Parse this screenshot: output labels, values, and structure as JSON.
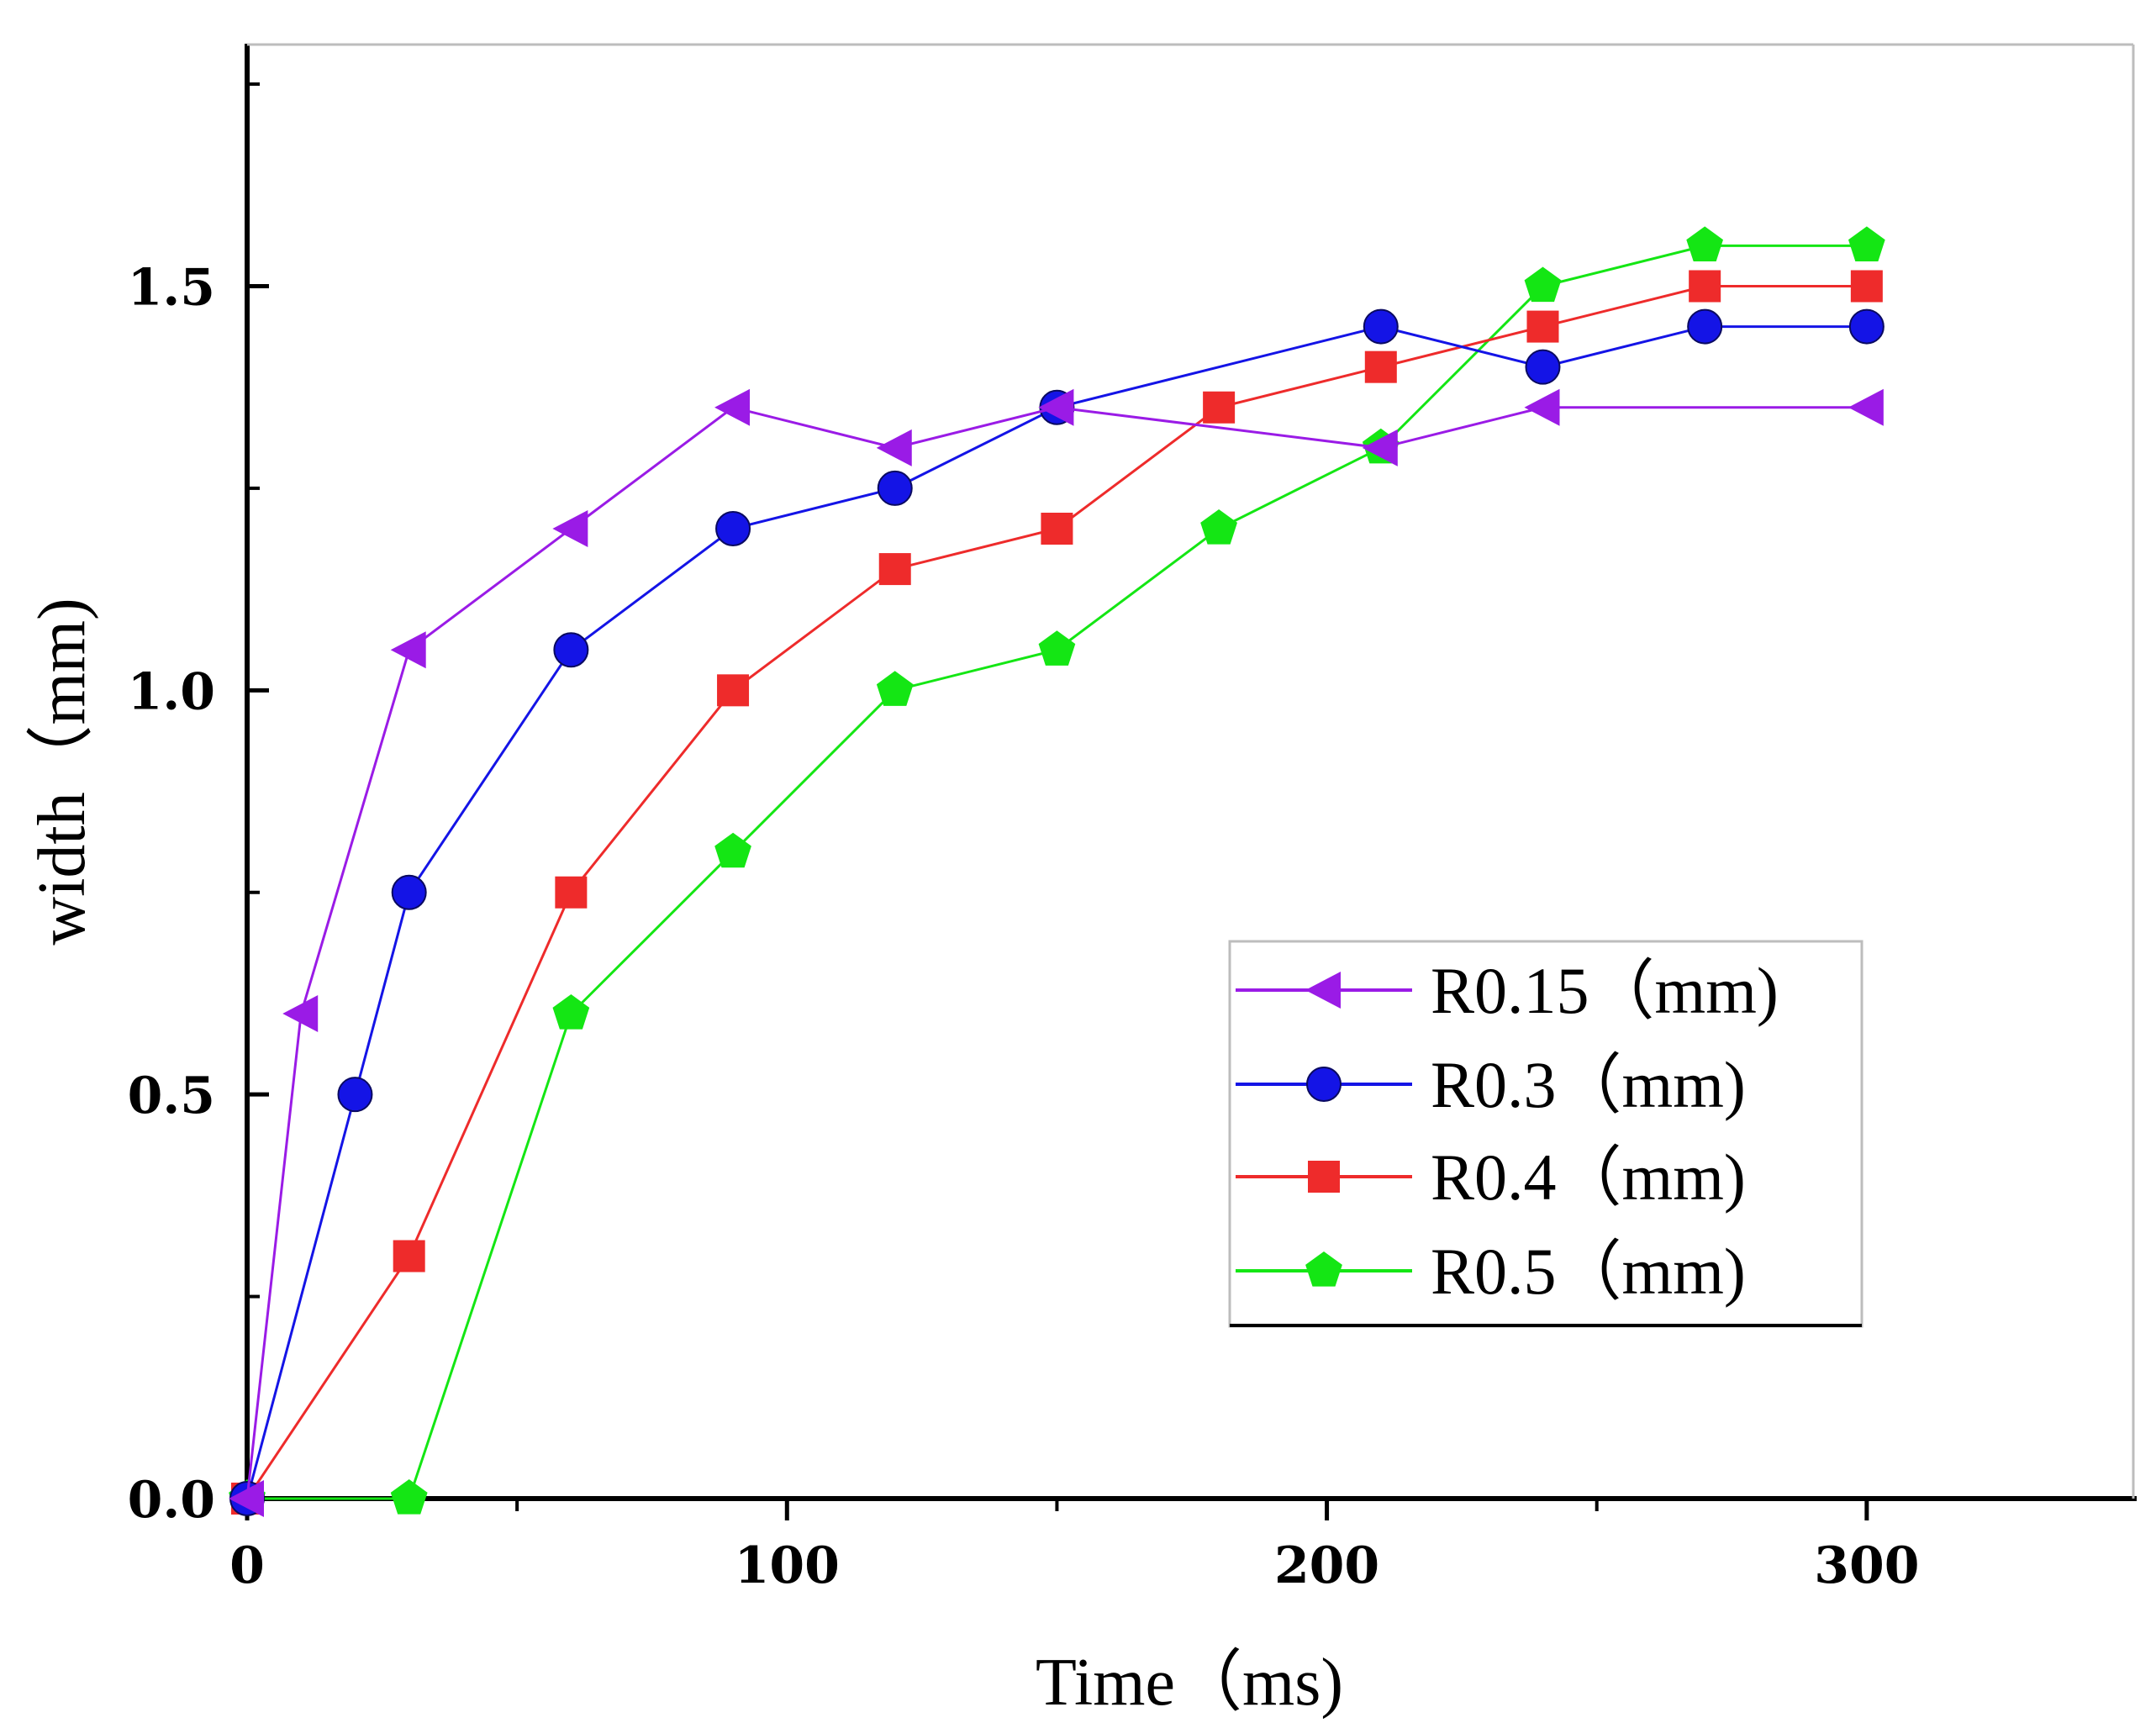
{
  "chart_data": {
    "type": "line",
    "title": "",
    "xlabel": "Time（ms)",
    "ylabel": "width（mm)",
    "xlim": [
      0,
      350
    ],
    "ylim": [
      0,
      1.8
    ],
    "x_ticks": [
      0,
      100,
      200,
      300
    ],
    "x_tick_labels": [
      "0",
      "100",
      "200",
      "300"
    ],
    "x_minor_ticks": [
      50,
      150,
      250
    ],
    "y_ticks": [
      0,
      0.5,
      1.0,
      1.5
    ],
    "y_tick_labels": [
      "0.0",
      "0.5",
      "1.0",
      "1.5"
    ],
    "y_minor_ticks": [
      0.25,
      0.75,
      1.25,
      1.75
    ],
    "grid": false,
    "legend_position": "bottom-right",
    "series": [
      {
        "name": "R0.15（mm)",
        "color": "#9a1be6",
        "marker": "left-triangle",
        "x": [
          0,
          10,
          30,
          60,
          90,
          120,
          150,
          210,
          240,
          300
        ],
        "y": [
          0.0,
          0.6,
          1.05,
          1.2,
          1.35,
          1.3,
          1.35,
          1.3,
          1.35,
          1.35
        ]
      },
      {
        "name": "R0.3（mm)",
        "color": "#1414e6",
        "marker": "circle",
        "x": [
          0,
          20,
          30,
          60,
          90,
          120,
          150,
          210,
          240,
          270,
          300
        ],
        "y": [
          0.0,
          0.5,
          0.75,
          1.05,
          1.2,
          1.25,
          1.35,
          1.45,
          1.4,
          1.45,
          1.45
        ]
      },
      {
        "name": "R0.4（mm)",
        "color": "#ee2b2b",
        "marker": "square",
        "x": [
          0,
          30,
          60,
          90,
          120,
          150,
          180,
          210,
          240,
          270,
          300
        ],
        "y": [
          0.0,
          0.3,
          0.75,
          1.0,
          1.15,
          1.2,
          1.35,
          1.4,
          1.45,
          1.5,
          1.5
        ]
      },
      {
        "name": "R0.5（mm)",
        "color": "#14e614",
        "marker": "pentagon",
        "x": [
          0,
          30,
          60,
          90,
          120,
          150,
          180,
          210,
          240,
          270,
          300
        ],
        "y": [
          0.0,
          0.0,
          0.6,
          0.8,
          1.0,
          1.05,
          1.2,
          1.3,
          1.5,
          1.55,
          1.55
        ]
      }
    ]
  }
}
